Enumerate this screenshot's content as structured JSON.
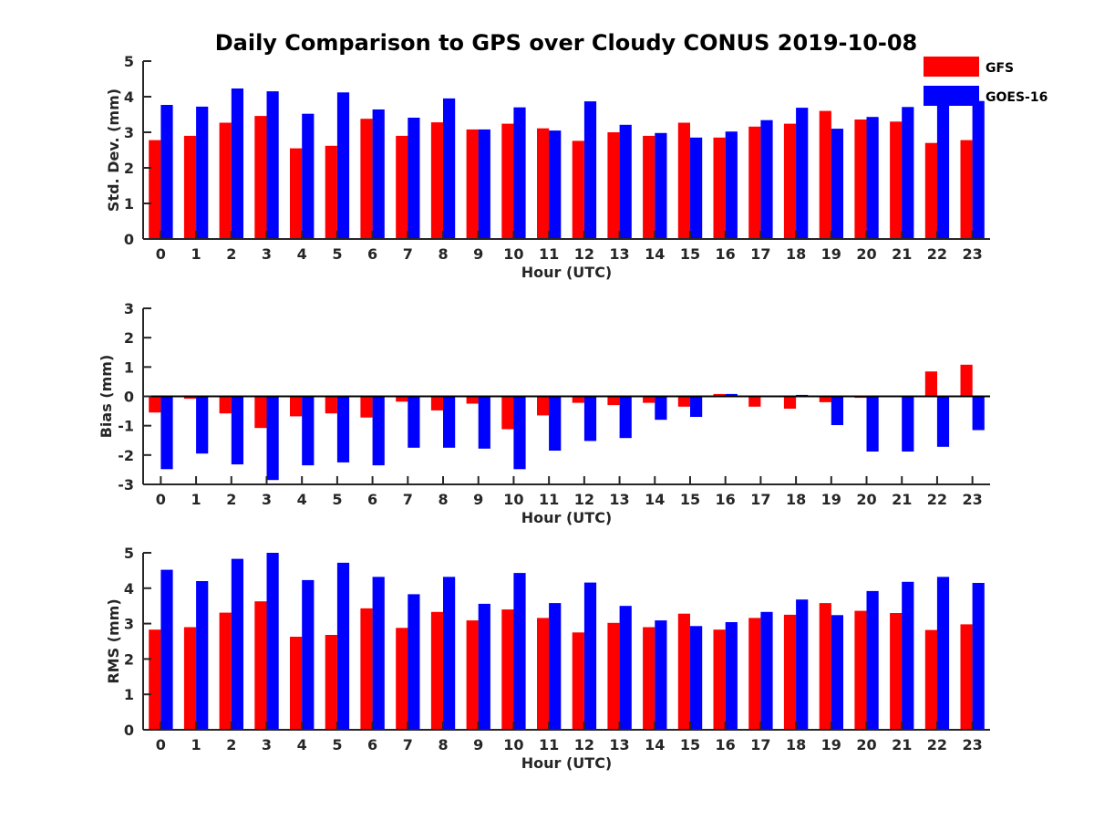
{
  "chart_data": [
    {
      "type": "bar",
      "id": "std",
      "title": "Daily Comparison to GPS over Cloudy CONUS 2019-10-08",
      "xlabel": "Hour (UTC)",
      "ylabel": "Std. Dev. (mm)",
      "ylim": [
        0,
        5
      ],
      "yticks": [
        0,
        1,
        2,
        3,
        4,
        5
      ],
      "categories": [
        "0",
        "1",
        "2",
        "3",
        "4",
        "5",
        "6",
        "7",
        "8",
        "9",
        "10",
        "11",
        "12",
        "13",
        "14",
        "15",
        "16",
        "17",
        "18",
        "19",
        "20",
        "21",
        "22",
        "23"
      ],
      "legend_position": "top-right",
      "series": [
        {
          "name": "GFS",
          "color": "#ff0000",
          "values": [
            2.78,
            2.9,
            3.27,
            3.46,
            2.55,
            2.62,
            3.38,
            2.9,
            3.28,
            3.08,
            3.24,
            3.11,
            2.76,
            3.0,
            2.9,
            3.27,
            2.85,
            3.16,
            3.24,
            3.6,
            3.36,
            3.3,
            2.7,
            2.78
          ]
        },
        {
          "name": "GOES-16",
          "color": "#0000ff",
          "values": [
            3.77,
            3.72,
            4.23,
            4.15,
            3.52,
            4.12,
            3.64,
            3.41,
            3.95,
            3.08,
            3.7,
            3.05,
            3.87,
            3.21,
            2.98,
            2.85,
            3.02,
            3.34,
            3.69,
            3.1,
            3.43,
            3.71,
            4.0,
            3.88
          ]
        }
      ]
    },
    {
      "type": "bar",
      "id": "bias",
      "xlabel": "Hour (UTC)",
      "ylabel": "Bias (mm)",
      "ylim": [
        -3,
        3
      ],
      "yticks": [
        -3,
        -2,
        -1,
        0,
        1,
        2,
        3
      ],
      "categories": [
        "0",
        "1",
        "2",
        "3",
        "4",
        "5",
        "6",
        "7",
        "8",
        "9",
        "10",
        "11",
        "12",
        "13",
        "14",
        "15",
        "16",
        "17",
        "18",
        "19",
        "20",
        "21",
        "22",
        "23"
      ],
      "series": [
        {
          "name": "GFS",
          "color": "#ff0000",
          "values": [
            -0.55,
            -0.08,
            -0.58,
            -1.08,
            -0.68,
            -0.58,
            -0.72,
            -0.18,
            -0.48,
            -0.25,
            -1.12,
            -0.65,
            -0.22,
            -0.3,
            -0.22,
            -0.35,
            0.08,
            -0.35,
            -0.42,
            -0.2,
            -0.05,
            0.0,
            0.85,
            1.08
          ]
        },
        {
          "name": "GOES-16",
          "color": "#0000ff",
          "values": [
            -2.48,
            -1.95,
            -2.32,
            -2.85,
            -2.35,
            -2.25,
            -2.35,
            -1.75,
            -1.75,
            -1.78,
            -2.48,
            -1.85,
            -1.52,
            -1.42,
            -0.8,
            -0.7,
            0.08,
            0.02,
            0.05,
            -0.98,
            -1.88,
            -1.88,
            -1.72,
            -1.15
          ]
        }
      ]
    },
    {
      "type": "bar",
      "id": "rms",
      "xlabel": "Hour (UTC)",
      "ylabel": "RMS (mm)",
      "ylim": [
        0,
        5
      ],
      "yticks": [
        0,
        1,
        2,
        3,
        4,
        5
      ],
      "categories": [
        "0",
        "1",
        "2",
        "3",
        "4",
        "5",
        "6",
        "7",
        "8",
        "9",
        "10",
        "11",
        "12",
        "13",
        "14",
        "15",
        "16",
        "17",
        "18",
        "19",
        "20",
        "21",
        "22",
        "23"
      ],
      "series": [
        {
          "name": "GFS",
          "color": "#ff0000",
          "values": [
            2.83,
            2.9,
            3.31,
            3.63,
            2.63,
            2.68,
            3.43,
            2.88,
            3.33,
            3.09,
            3.4,
            3.16,
            2.75,
            3.02,
            2.9,
            3.28,
            2.83,
            3.16,
            3.25,
            3.58,
            3.36,
            3.3,
            2.82,
            2.98
          ]
        },
        {
          "name": "GOES-16",
          "color": "#0000ff",
          "values": [
            4.52,
            4.2,
            4.83,
            5.0,
            4.23,
            4.72,
            4.32,
            3.83,
            4.32,
            3.56,
            4.43,
            3.58,
            4.16,
            3.5,
            3.09,
            2.93,
            3.04,
            3.33,
            3.68,
            3.24,
            3.92,
            4.18,
            4.32,
            4.15
          ]
        }
      ]
    }
  ]
}
